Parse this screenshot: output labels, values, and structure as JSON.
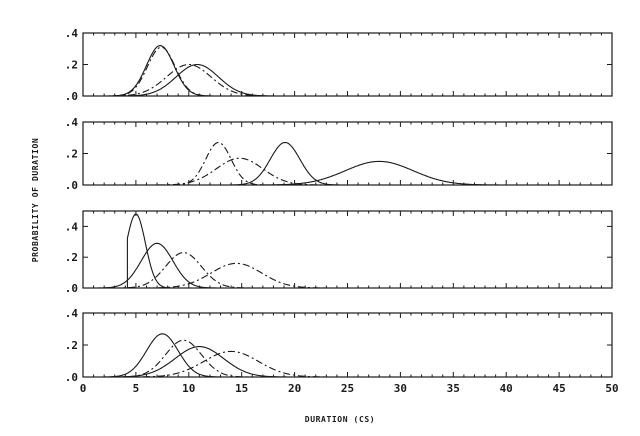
{
  "chart_data": {
    "type": "line",
    "xlabel": "DURATION (CS)",
    "ylabel": "PROBABILITY OF DURATION",
    "xlim": [
      0,
      50
    ],
    "x_ticks": [
      "0",
      "5",
      "10",
      "15",
      "20",
      "25",
      "30",
      "35",
      "40",
      "45",
      "50"
    ],
    "grid": false,
    "panels": [
      {
        "ylim": [
          0,
          0.4
        ],
        "y_ticks": [
          ".0",
          ".2",
          ".4"
        ],
        "series": [
          {
            "style": "solid",
            "mean": 7.3,
            "sd": 1.3,
            "peak": 0.32
          },
          {
            "style": "dash-dot",
            "mean": 7.4,
            "sd": 1.3,
            "peak": 0.31
          },
          {
            "style": "solid",
            "mean": 10.8,
            "sd": 2.0,
            "peak": 0.2
          },
          {
            "style": "dash-dot",
            "mean": 10.0,
            "sd": 2.1,
            "peak": 0.2
          }
        ]
      },
      {
        "ylim": [
          0,
          0.4
        ],
        "y_ticks": [
          ".0",
          ".2",
          ".4"
        ],
        "series": [
          {
            "style": "dash-dot",
            "mean": 12.8,
            "sd": 1.2,
            "peak": 0.27
          },
          {
            "style": "dash-dot",
            "mean": 14.8,
            "sd": 2.2,
            "peak": 0.17
          },
          {
            "style": "solid",
            "mean": 19.1,
            "sd": 1.4,
            "peak": 0.27
          },
          {
            "style": "solid",
            "mean": 28.0,
            "sd": 3.2,
            "peak": 0.15
          }
        ]
      },
      {
        "ylim": [
          0,
          0.5
        ],
        "y_ticks": [
          ".0",
          ".2",
          ".4"
        ],
        "series": [
          {
            "style": "solid",
            "mean": 5.0,
            "sd": 0.9,
            "peak": 0.48,
            "min_x": 4.2
          },
          {
            "style": "solid",
            "mean": 7.0,
            "sd": 1.5,
            "peak": 0.29
          },
          {
            "style": "dash-dot",
            "mean": 9.5,
            "sd": 1.7,
            "peak": 0.23
          },
          {
            "style": "dash-dot",
            "mean": 14.5,
            "sd": 2.4,
            "peak": 0.16
          }
        ]
      },
      {
        "ylim": [
          0,
          0.4
        ],
        "y_ticks": [
          ".0",
          ".2",
          ".4"
        ],
        "series": [
          {
            "style": "solid",
            "mean": 7.5,
            "sd": 1.5,
            "peak": 0.27
          },
          {
            "style": "dash-dot",
            "mean": 9.5,
            "sd": 1.7,
            "peak": 0.23
          },
          {
            "style": "solid",
            "mean": 11.0,
            "sd": 2.3,
            "peak": 0.19
          },
          {
            "style": "dash-dot",
            "mean": 14.0,
            "sd": 2.6,
            "peak": 0.16
          }
        ]
      }
    ]
  }
}
